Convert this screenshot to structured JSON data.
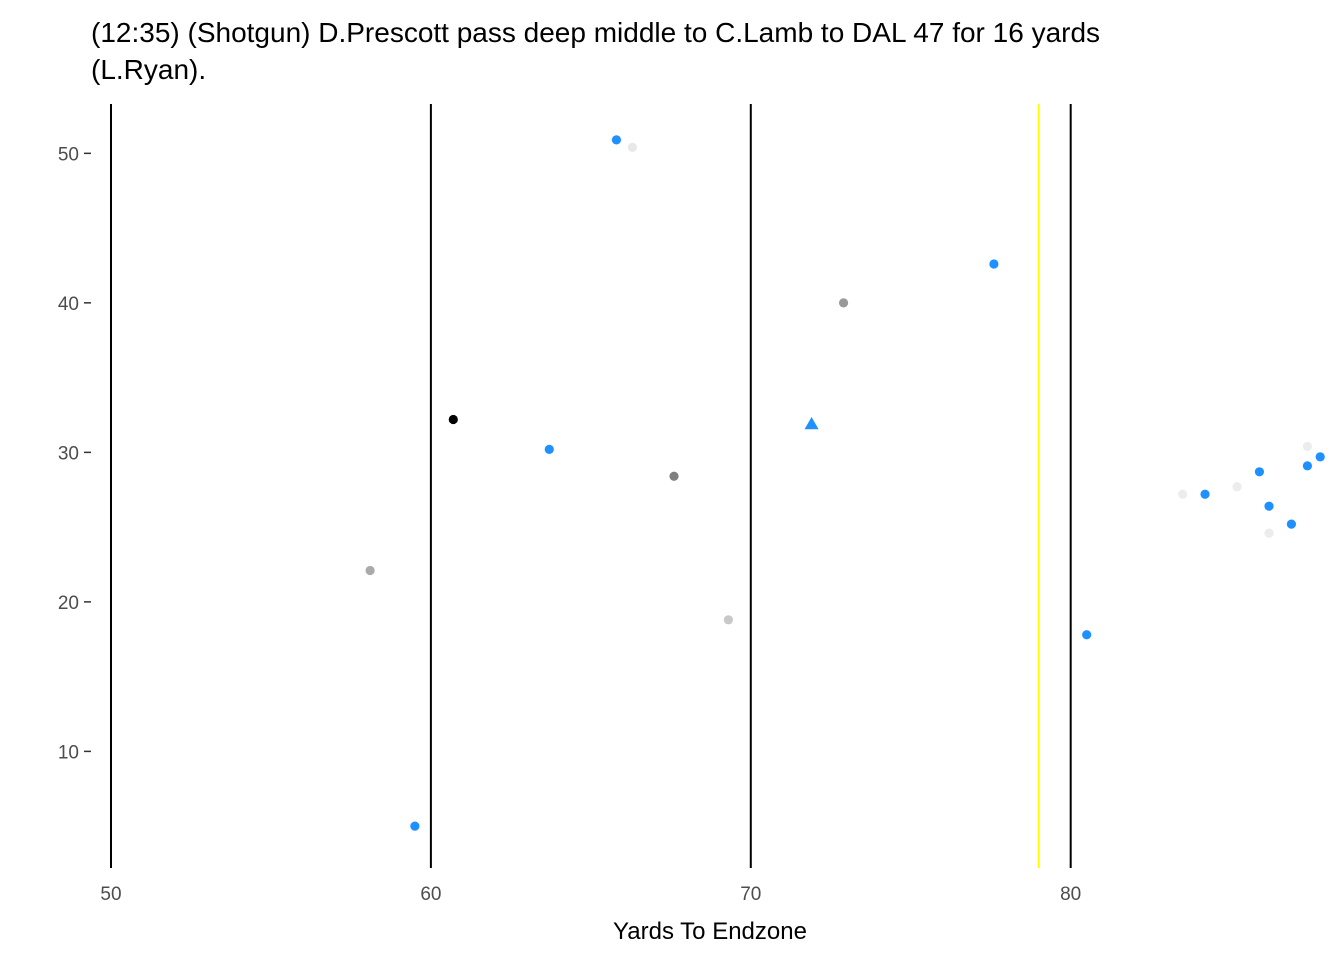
{
  "chart_data": {
    "type": "scatter",
    "title_lines": [
      "(12:35) (Shotgun) D.Prescott pass deep middle to C.Lamb to DAL 47 for 16 yards",
      "(L.Ryan)."
    ],
    "xlabel": "Yards To Endzone",
    "ylabel": "",
    "x_ticks": [
      "50",
      "60",
      "70",
      "80"
    ],
    "y_ticks": [
      "10",
      "20",
      "30",
      "40",
      "50"
    ],
    "xlim": [
      49.5,
      88.2
    ],
    "ylim": [
      2.2,
      53.3
    ],
    "grid": false,
    "legend": "none",
    "vertical_lines": [
      {
        "x": 50,
        "color": "#000000"
      },
      {
        "x": 60,
        "color": "#000000"
      },
      {
        "x": 70,
        "color": "#000000"
      },
      {
        "x": 80,
        "color": "#000000"
      },
      {
        "x": 79,
        "color": "#ffff00"
      }
    ],
    "colors": {
      "offense": "#1e90ff",
      "ball": "#1e90ff"
    },
    "points": [
      {
        "x": 65.8,
        "y": 50.9,
        "color": "#1e90ff",
        "shape": "circle"
      },
      {
        "x": 66.3,
        "y": 50.4,
        "color": "#e8e8e8",
        "shape": "circle"
      },
      {
        "x": 77.6,
        "y": 42.6,
        "color": "#1e90ff",
        "shape": "circle"
      },
      {
        "x": 72.9,
        "y": 40.0,
        "color": "#999999",
        "shape": "circle"
      },
      {
        "x": 60.7,
        "y": 32.2,
        "color": "#000000",
        "shape": "circle"
      },
      {
        "x": 71.9,
        "y": 31.9,
        "color": "#1e90ff",
        "shape": "triangle"
      },
      {
        "x": 63.7,
        "y": 30.2,
        "color": "#1e90ff",
        "shape": "circle"
      },
      {
        "x": 67.6,
        "y": 28.4,
        "color": "#808080",
        "shape": "circle"
      },
      {
        "x": 58.1,
        "y": 22.1,
        "color": "#aaaaaa",
        "shape": "circle"
      },
      {
        "x": 69.3,
        "y": 18.8,
        "color": "#c8c8c8",
        "shape": "circle"
      },
      {
        "x": 59.5,
        "y": 5.0,
        "color": "#1e90ff",
        "shape": "circle"
      },
      {
        "x": 80.5,
        "y": 17.8,
        "color": "#1e90ff",
        "shape": "circle"
      },
      {
        "x": 83.5,
        "y": 27.2,
        "color": "#ececec",
        "shape": "circle"
      },
      {
        "x": 84.2,
        "y": 27.2,
        "color": "#1e90ff",
        "shape": "circle"
      },
      {
        "x": 85.2,
        "y": 27.7,
        "color": "#ececec",
        "shape": "circle"
      },
      {
        "x": 85.9,
        "y": 28.7,
        "color": "#1e90ff",
        "shape": "circle"
      },
      {
        "x": 86.2,
        "y": 26.4,
        "color": "#1e90ff",
        "shape": "circle"
      },
      {
        "x": 86.2,
        "y": 24.6,
        "color": "#ececec",
        "shape": "circle"
      },
      {
        "x": 86.9,
        "y": 25.2,
        "color": "#1e90ff",
        "shape": "circle"
      },
      {
        "x": 87.4,
        "y": 30.4,
        "color": "#ececec",
        "shape": "circle"
      },
      {
        "x": 87.4,
        "y": 29.1,
        "color": "#1e90ff",
        "shape": "circle"
      },
      {
        "x": 87.8,
        "y": 29.7,
        "color": "#1e90ff",
        "shape": "circle"
      }
    ]
  }
}
